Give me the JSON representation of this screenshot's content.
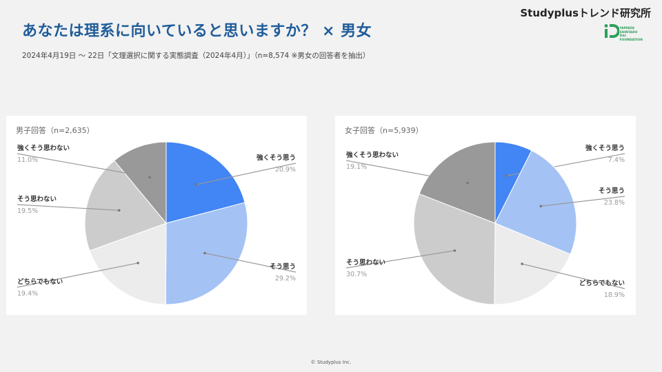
{
  "title": "あなたは理系に向いていると思いますか？ × 男女",
  "subtitle": "2024年4月19日 〜 22日「文理選択に関する実態調査（2024年4月）」（n=8,574 ※男女の回答者を抽出）",
  "brand": {
    "name": "Studyplusトレンド研究所",
    "foundation_lines": [
      "YAMADA",
      "SHINTARO",
      "D&I",
      "FOUNDATION"
    ]
  },
  "footer": "© Studyplus Inc.",
  "colors": {
    "strong_yes": "#4285f4",
    "yes": "#a4c2f4",
    "neutral": "#ececec",
    "no": "#cccccc",
    "strong_no": "#999999",
    "title": "#1f5c99"
  },
  "chart_data": [
    {
      "type": "pie",
      "title": "男子回答（n=2,635）",
      "slices": [
        {
          "label": "強くそう思う",
          "value": 20.9,
          "display": "20.9%",
          "color": "#4285f4"
        },
        {
          "label": "そう思う",
          "value": 29.2,
          "display": "29.2%",
          "color": "#a4c2f4"
        },
        {
          "label": "どちらでもない",
          "value": 19.4,
          "display": "19.4%",
          "color": "#ececec"
        },
        {
          "label": "そう思わない",
          "value": 19.5,
          "display": "19.5%",
          "color": "#cccccc"
        },
        {
          "label": "強くそう思わない",
          "value": 11.0,
          "display": "11.0%",
          "color": "#999999"
        }
      ]
    },
    {
      "type": "pie",
      "title": "女子回答（n=5,939）",
      "slices": [
        {
          "label": "強くそう思う",
          "value": 7.4,
          "display": "7.4%",
          "color": "#4285f4"
        },
        {
          "label": "そう思う",
          "value": 23.8,
          "display": "23.8%",
          "color": "#a4c2f4"
        },
        {
          "label": "どちらでもない",
          "value": 18.9,
          "display": "18.9%",
          "color": "#ececec"
        },
        {
          "label": "そう思わない",
          "value": 30.7,
          "display": "30.7%",
          "color": "#cccccc"
        },
        {
          "label": "強くそう思わない",
          "value": 19.1,
          "display": "19.1%",
          "color": "#999999"
        }
      ]
    }
  ]
}
